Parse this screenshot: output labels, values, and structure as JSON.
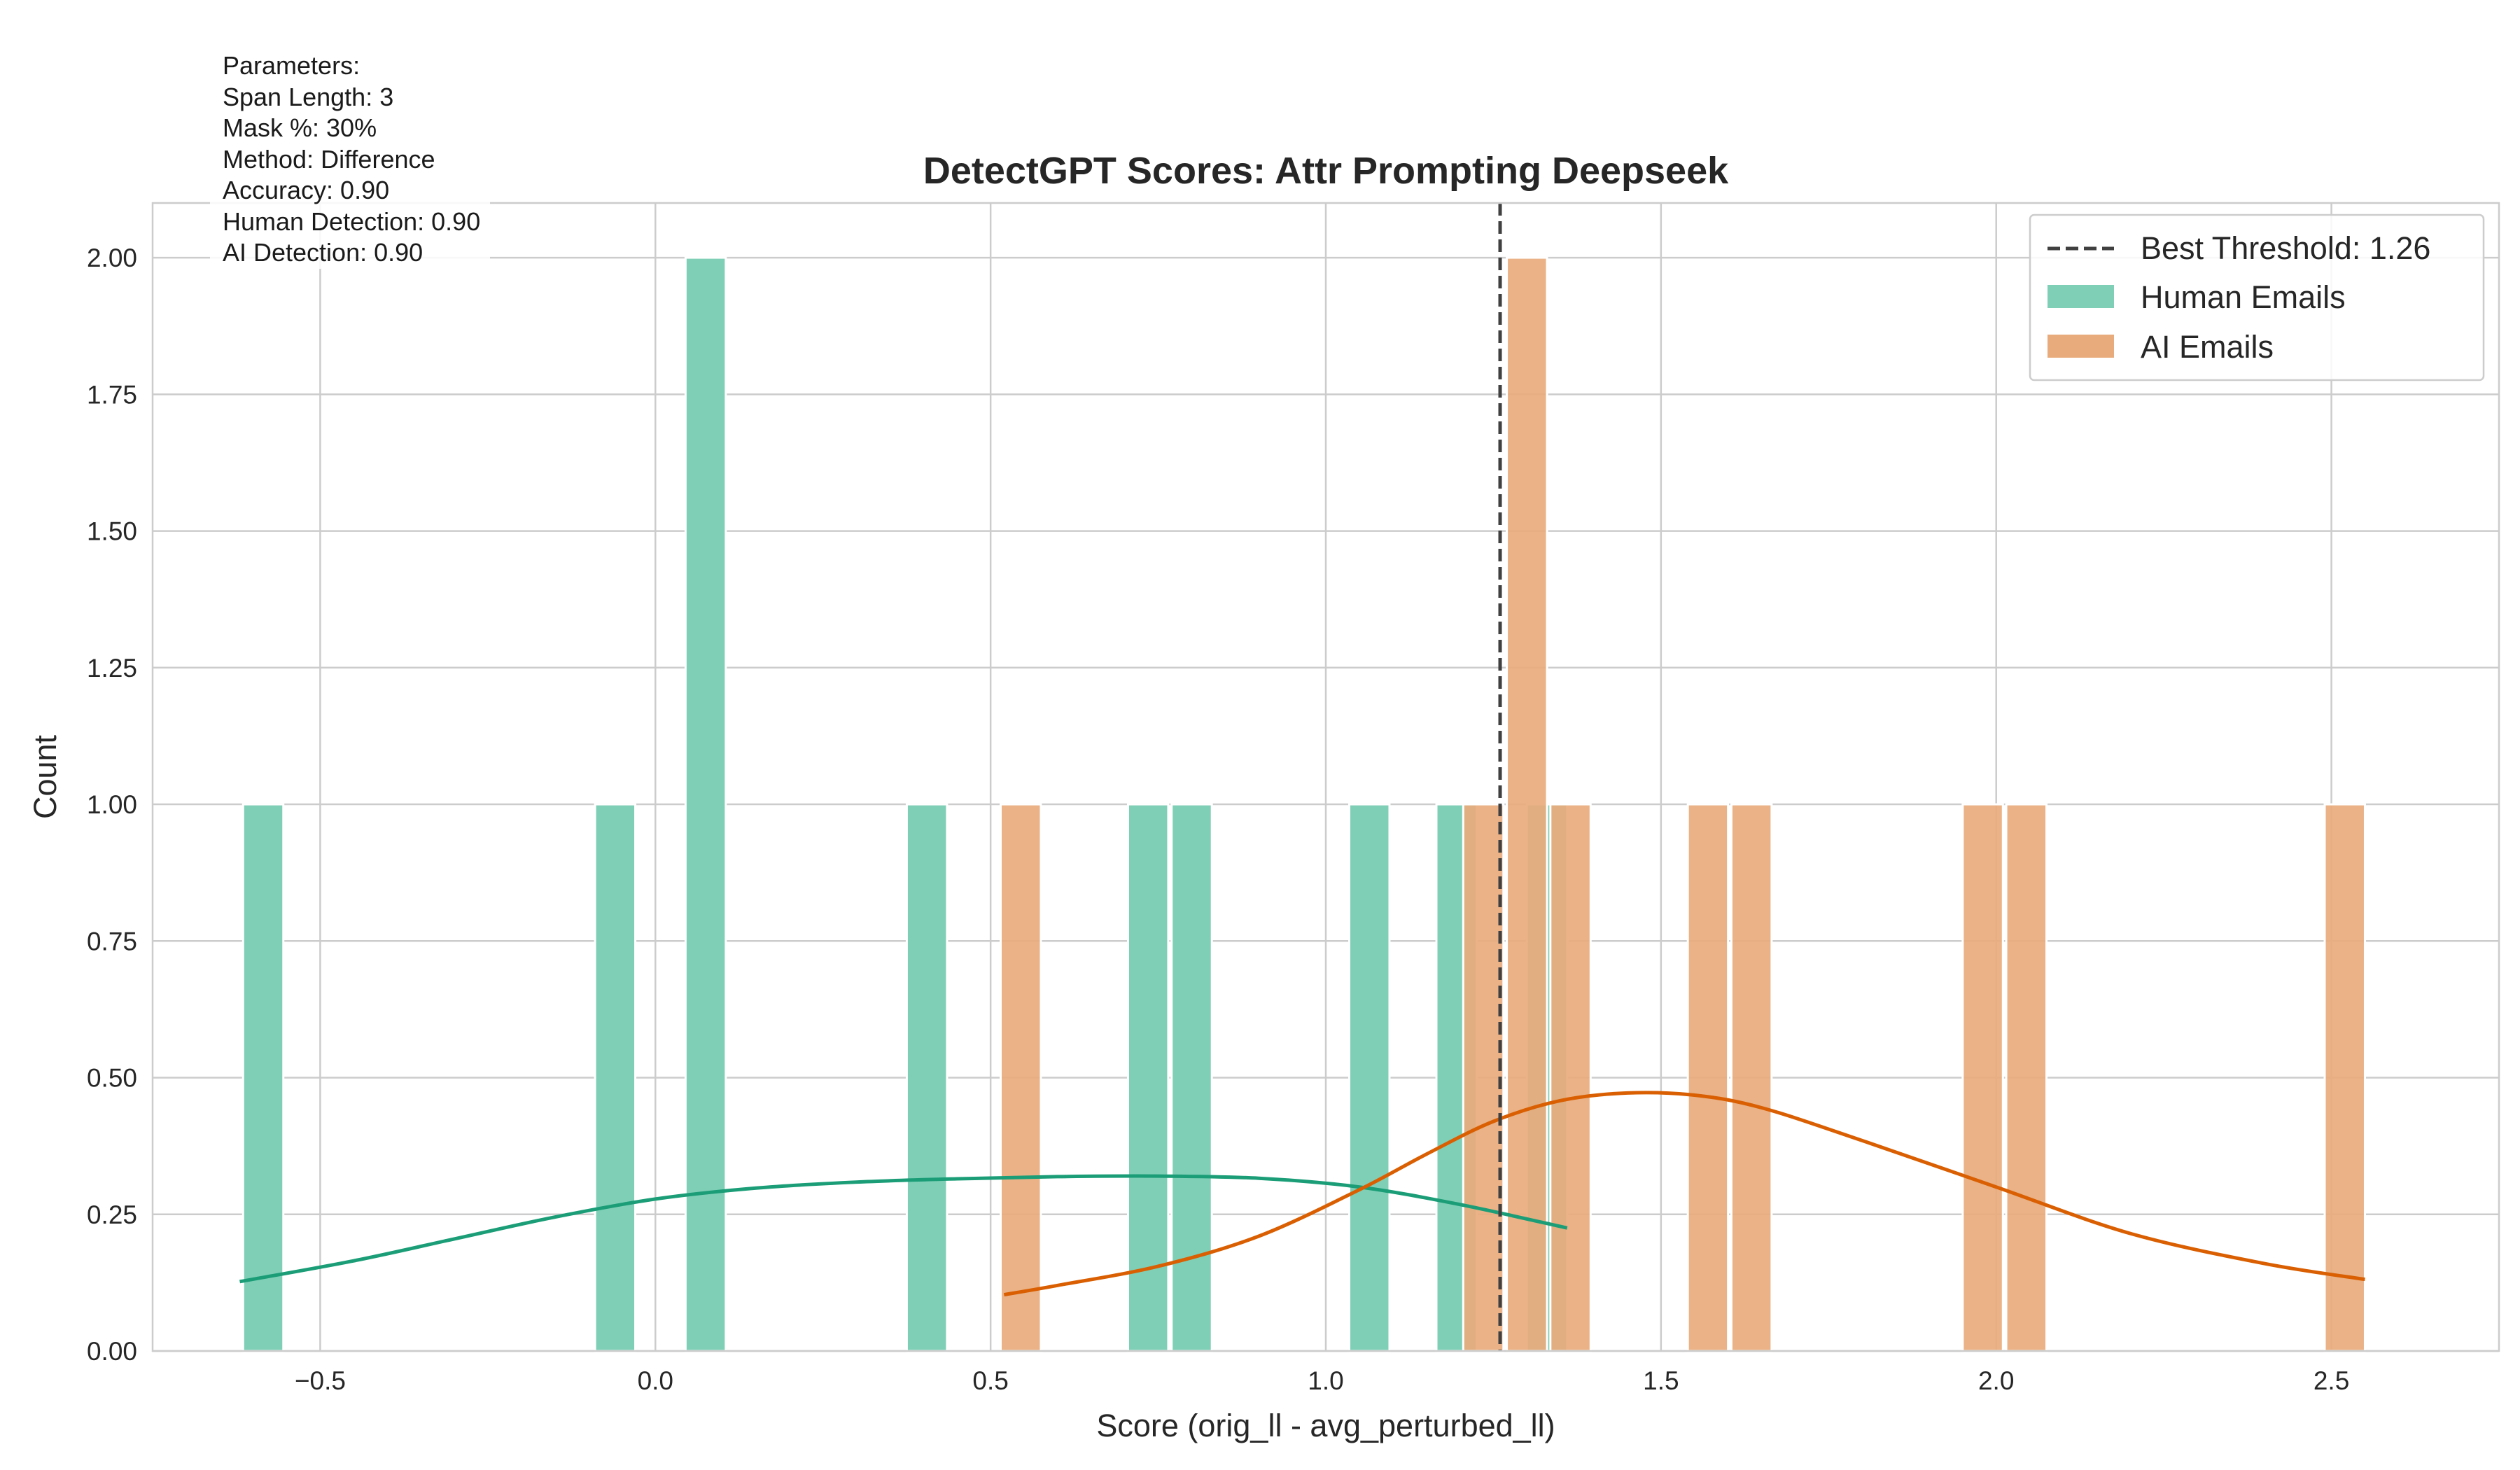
{
  "chart_data": {
    "type": "bar",
    "title": "DetectGPT Scores: Attr Prompting Deepseek",
    "xlabel": "Score (orig_ll - avg_perturbed_ll)",
    "ylabel": "Count",
    "xlim": [
      -0.75,
      2.75
    ],
    "ylim": [
      0,
      2.1
    ],
    "xticks": [
      -0.5,
      0.0,
      0.5,
      1.0,
      1.5,
      2.0,
      2.5
    ],
    "xtick_labels": [
      "−0.5",
      "0.0",
      "0.5",
      "1.0",
      "1.5",
      "2.0",
      "2.5"
    ],
    "yticks": [
      0,
      0.25,
      0.5,
      0.75,
      1.0,
      1.25,
      1.5,
      1.75,
      2.0
    ],
    "ytick_labels": [
      "0.00",
      "0.25",
      "0.50",
      "0.75",
      "1.00",
      "1.25",
      "1.50",
      "1.75",
      "2.00"
    ],
    "grid": true,
    "legend_position": "top-right",
    "threshold": {
      "label": "Best Threshold: 1.26",
      "value": 1.26
    },
    "series": [
      {
        "name": "Human Emails",
        "color": "#1b9e77",
        "bar_fill": "#7fcfb6",
        "bins": [
          {
            "x0": -0.615,
            "x1": -0.555,
            "count": 1
          },
          {
            "x0": -0.09,
            "x1": -0.03,
            "count": 1
          },
          {
            "x0": 0.045,
            "x1": 0.105,
            "count": 2
          },
          {
            "x0": 0.375,
            "x1": 0.435,
            "count": 1
          },
          {
            "x0": 0.705,
            "x1": 0.765,
            "count": 1
          },
          {
            "x0": 0.77,
            "x1": 0.83,
            "count": 1
          },
          {
            "x0": 1.035,
            "x1": 1.095,
            "count": 1
          },
          {
            "x0": 1.165,
            "x1": 1.225,
            "count": 1
          },
          {
            "x0": 1.3,
            "x1": 1.36,
            "count": 1
          }
        ],
        "kde": {
          "x": [
            -0.62,
            -0.45,
            -0.3,
            -0.15,
            0.0,
            0.15,
            0.3,
            0.45,
            0.6,
            0.75,
            0.9,
            1.05,
            1.2,
            1.36
          ],
          "y": [
            0.127,
            0.165,
            0.205,
            0.245,
            0.278,
            0.298,
            0.309,
            0.315,
            0.319,
            0.32,
            0.316,
            0.3,
            0.268,
            0.225
          ]
        }
      },
      {
        "name": "AI Emails",
        "color": "#d95f02",
        "bar_fill": "#e8ab7c",
        "bins": [
          {
            "x0": 0.515,
            "x1": 0.575,
            "count": 1
          },
          {
            "x0": 1.205,
            "x1": 1.265,
            "count": 1
          },
          {
            "x0": 1.27,
            "x1": 1.33,
            "count": 2
          },
          {
            "x0": 1.335,
            "x1": 1.395,
            "count": 1
          },
          {
            "x0": 1.54,
            "x1": 1.6,
            "count": 1
          },
          {
            "x0": 1.605,
            "x1": 1.665,
            "count": 1
          },
          {
            "x0": 1.95,
            "x1": 2.01,
            "count": 1
          },
          {
            "x0": 2.015,
            "x1": 2.075,
            "count": 1
          },
          {
            "x0": 2.49,
            "x1": 2.55,
            "count": 1
          }
        ],
        "kde": {
          "x": [
            0.52,
            0.6,
            0.75,
            0.9,
            1.05,
            1.15,
            1.25,
            1.35,
            1.45,
            1.55,
            1.65,
            1.8,
            2.0,
            2.2,
            2.4,
            2.55
          ],
          "y": [
            0.103,
            0.12,
            0.155,
            0.21,
            0.295,
            0.36,
            0.42,
            0.458,
            0.472,
            0.468,
            0.445,
            0.385,
            0.3,
            0.215,
            0.16,
            0.131
          ]
        }
      }
    ]
  },
  "parameters": {
    "lines": [
      "Parameters:",
      "Span Length: 3",
      "Mask %: 30%",
      "Method: Difference",
      "Accuracy: 0.90",
      "Human Detection: 0.90",
      "AI Detection: 0.90"
    ]
  }
}
